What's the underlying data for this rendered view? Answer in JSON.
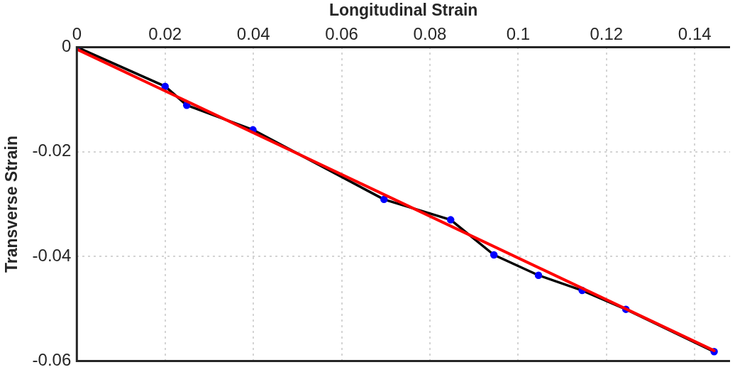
{
  "chart_data": {
    "type": "line",
    "xlabel": "Longitudinal Strain",
    "ylabel": "Transverse Strain",
    "x": [
      0,
      0.02,
      0.0249,
      0.0399,
      0.0696,
      0.0847,
      0.0945,
      0.1046,
      0.1145,
      0.1244,
      0.1444
    ],
    "series": [
      {
        "color": "#000000",
        "colors": [
          "#0000ff",
          "#0000ff",
          "#0000ff",
          "#0000ff",
          "#0000ff",
          "#0000ff",
          "#0000ff",
          "#0000ff",
          "#0000ff",
          "#0000ff",
          "#0000ff"
        ],
        "marker": "circle",
        "values": [
          0,
          -0.0075,
          -0.0111,
          -0.0158,
          -0.0291,
          -0.033,
          -0.0397,
          -0.0436,
          -0.0465,
          -0.0501,
          -0.0582
        ]
      },
      {
        "color": "#ff0000",
        "marker": "none",
        "x": [
          0,
          0.1444
        ],
        "values": [
          -0.0004,
          -0.058
        ]
      }
    ],
    "xlim": [
      0,
      0.148
    ],
    "xticks": [
      0,
      0.02,
      0.04,
      0.06,
      0.08,
      0.1,
      0.12,
      0.14
    ],
    "ylim": [
      -0.06,
      0
    ],
    "yticks": [
      0,
      -0.02,
      -0.04,
      -0.06
    ],
    "grid": true,
    "legend": false
  }
}
